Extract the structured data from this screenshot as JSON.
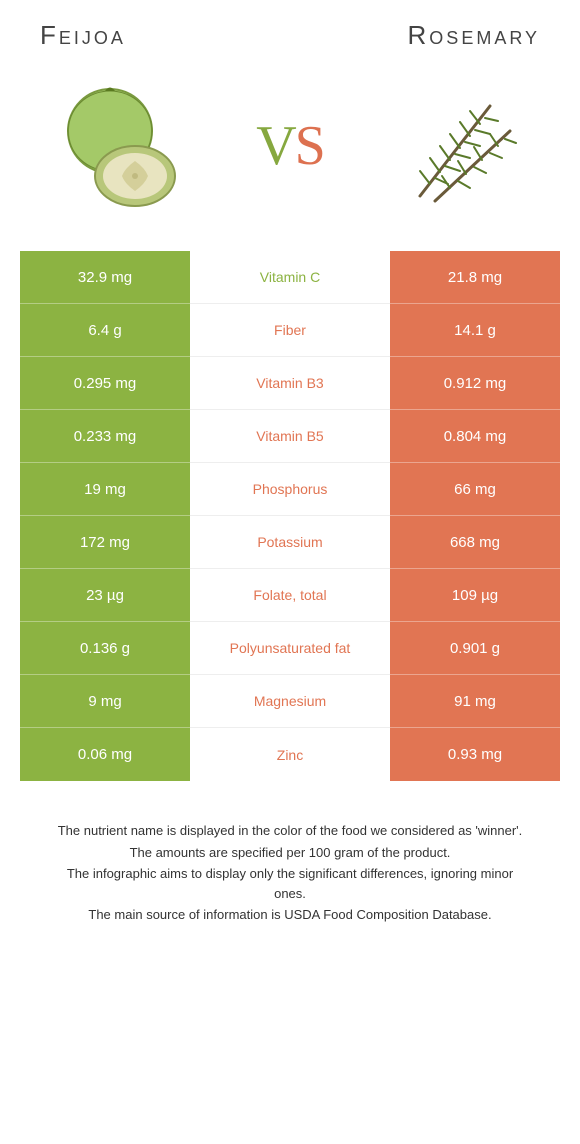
{
  "colors": {
    "left": "#8cb342",
    "right": "#e17553",
    "mid_bg": "#ffffff"
  },
  "header": {
    "left_title": "Feijoa",
    "right_title": "Rosemary",
    "vs_v": "V",
    "vs_s": "S"
  },
  "rows": [
    {
      "left": "32.9 mg",
      "label": "Vitamin C",
      "right": "21.8 mg",
      "winner": "left"
    },
    {
      "left": "6.4 g",
      "label": "Fiber",
      "right": "14.1 g",
      "winner": "right"
    },
    {
      "left": "0.295 mg",
      "label": "Vitamin B3",
      "right": "0.912 mg",
      "winner": "right"
    },
    {
      "left": "0.233 mg",
      "label": "Vitamin B5",
      "right": "0.804 mg",
      "winner": "right"
    },
    {
      "left": "19 mg",
      "label": "Phosphorus",
      "right": "66 mg",
      "winner": "right"
    },
    {
      "left": "172 mg",
      "label": "Potassium",
      "right": "668 mg",
      "winner": "right"
    },
    {
      "left": "23 µg",
      "label": "Folate, total",
      "right": "109 µg",
      "winner": "right"
    },
    {
      "left": "0.136 g",
      "label": "Polyunsaturated fat",
      "right": "0.901 g",
      "winner": "right"
    },
    {
      "left": "9 mg",
      "label": "Magnesium",
      "right": "91 mg",
      "winner": "right"
    },
    {
      "left": "0.06 mg",
      "label": "Zinc",
      "right": "0.93 mg",
      "winner": "right"
    }
  ],
  "footnotes": [
    "The nutrient name is displayed in the color of the food we considered as 'winner'.",
    "The amounts are specified per 100 gram of the product.",
    "The infographic aims to display only the significant differences, ignoring minor ones.",
    "The main source of information is USDA Food Composition Database."
  ]
}
